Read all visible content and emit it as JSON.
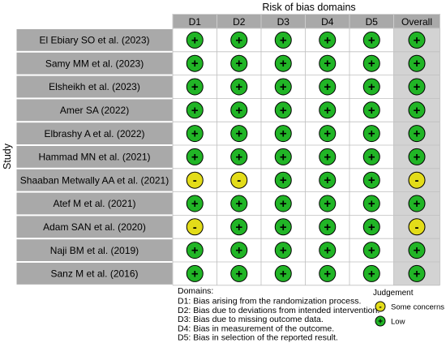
{
  "chart_data": {
    "type": "table",
    "title": "Risk of bias domains",
    "y_axis_label": "Study",
    "domains": [
      "D1",
      "D2",
      "D3",
      "D4",
      "D5",
      "Overall"
    ],
    "studies": [
      "El Ebiary SO et al. (2023)",
      "Samy MM et al. (2023)",
      "Elsheikh et al. (2023)",
      "Amer SA (2022)",
      "Elbrashy A et al. (2022)",
      "Hammad MN et al. (2021)",
      "Shaaban Metwally AA et al. (2021)",
      "Atef M et al. (2021)",
      "Adam SAN et al. (2020)",
      "Naji BM et al. (2019)",
      "Sanz M et al. (2016)"
    ],
    "judgements": [
      [
        "+",
        "+",
        "+",
        "+",
        "+",
        "+"
      ],
      [
        "+",
        "+",
        "+",
        "+",
        "+",
        "+"
      ],
      [
        "+",
        "+",
        "+",
        "+",
        "+",
        "+"
      ],
      [
        "+",
        "+",
        "+",
        "+",
        "+",
        "+"
      ],
      [
        "+",
        "+",
        "+",
        "+",
        "+",
        "+"
      ],
      [
        "+",
        "+",
        "+",
        "+",
        "+",
        "+"
      ],
      [
        "-",
        "-",
        "+",
        "+",
        "+",
        "-"
      ],
      [
        "+",
        "+",
        "+",
        "+",
        "+",
        "+"
      ],
      [
        "-",
        "+",
        "+",
        "+",
        "+",
        "-"
      ],
      [
        "+",
        "+",
        "+",
        "+",
        "+",
        "+"
      ],
      [
        "+",
        "+",
        "+",
        "+",
        "+",
        "+"
      ]
    ],
    "domain_legend_title": "Domains:",
    "domain_legend": [
      "D1: Bias arising from the randomization process.",
      "D2: Bias due to deviations from intended intervention.",
      "D3: Bias due to missing outcome data.",
      "D4: Bias in measurement of the outcome.",
      "D5: Bias in selection of the reported result."
    ],
    "judgement_legend_title": "Judgement",
    "judgement_legend": [
      {
        "symbol": "-",
        "label": "Some concerns",
        "color": "#e3dc19"
      },
      {
        "symbol": "+",
        "label": "Low",
        "color": "#21b526"
      }
    ],
    "colors": {
      "header_fill": "#a9a9a9",
      "study_fill": "#a9a9a9",
      "overall_fill": "#d3d3d3",
      "low": "#21b526",
      "some_concerns": "#e3dc19"
    }
  }
}
